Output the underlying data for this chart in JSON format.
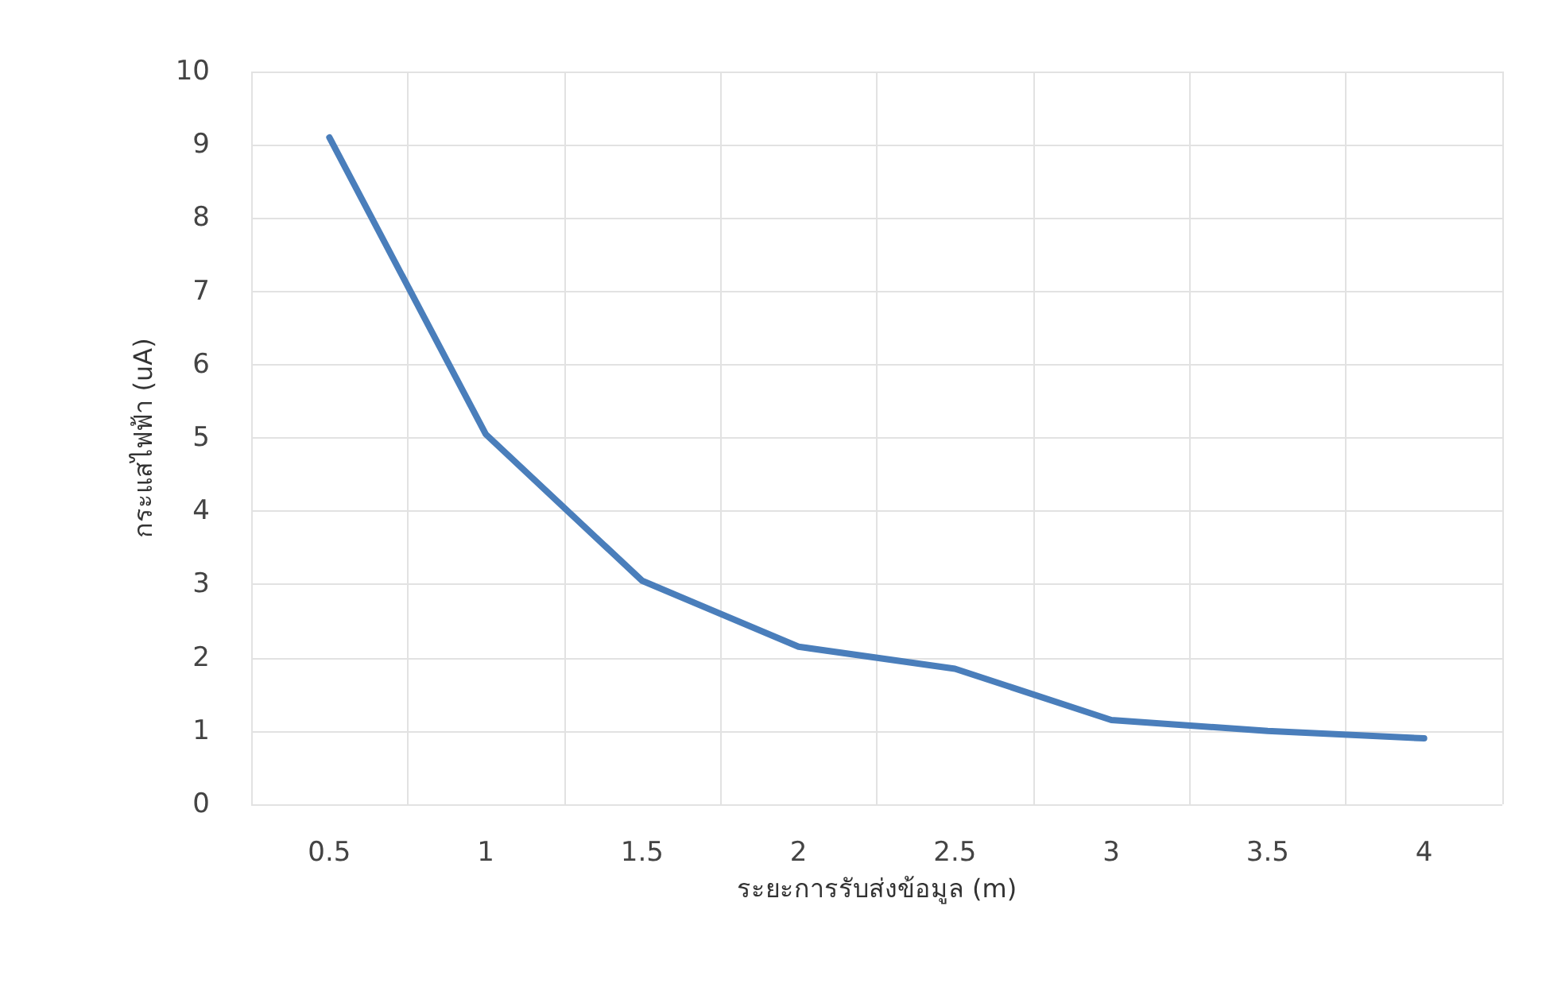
{
  "chart_data": {
    "type": "line",
    "xlabel": "ระยะการรับส่งข้อมูล (m)",
    "ylabel": "กระแสไฟฟ้า (uA)",
    "categories": [
      "0.5",
      "1",
      "1.5",
      "2",
      "2.5",
      "3",
      "3.5",
      "4"
    ],
    "series": [
      {
        "color": "#4a7ebb",
        "values": [
          9.1,
          5.05,
          3.05,
          2.15,
          1.85,
          1.15,
          1.0,
          0.9
        ]
      }
    ],
    "ylim": [
      0,
      10
    ],
    "yticks": [
      0,
      1,
      2,
      3,
      4,
      5,
      6,
      7,
      8,
      9,
      10
    ],
    "grid": true,
    "marker": "none",
    "line_style": "solid"
  }
}
